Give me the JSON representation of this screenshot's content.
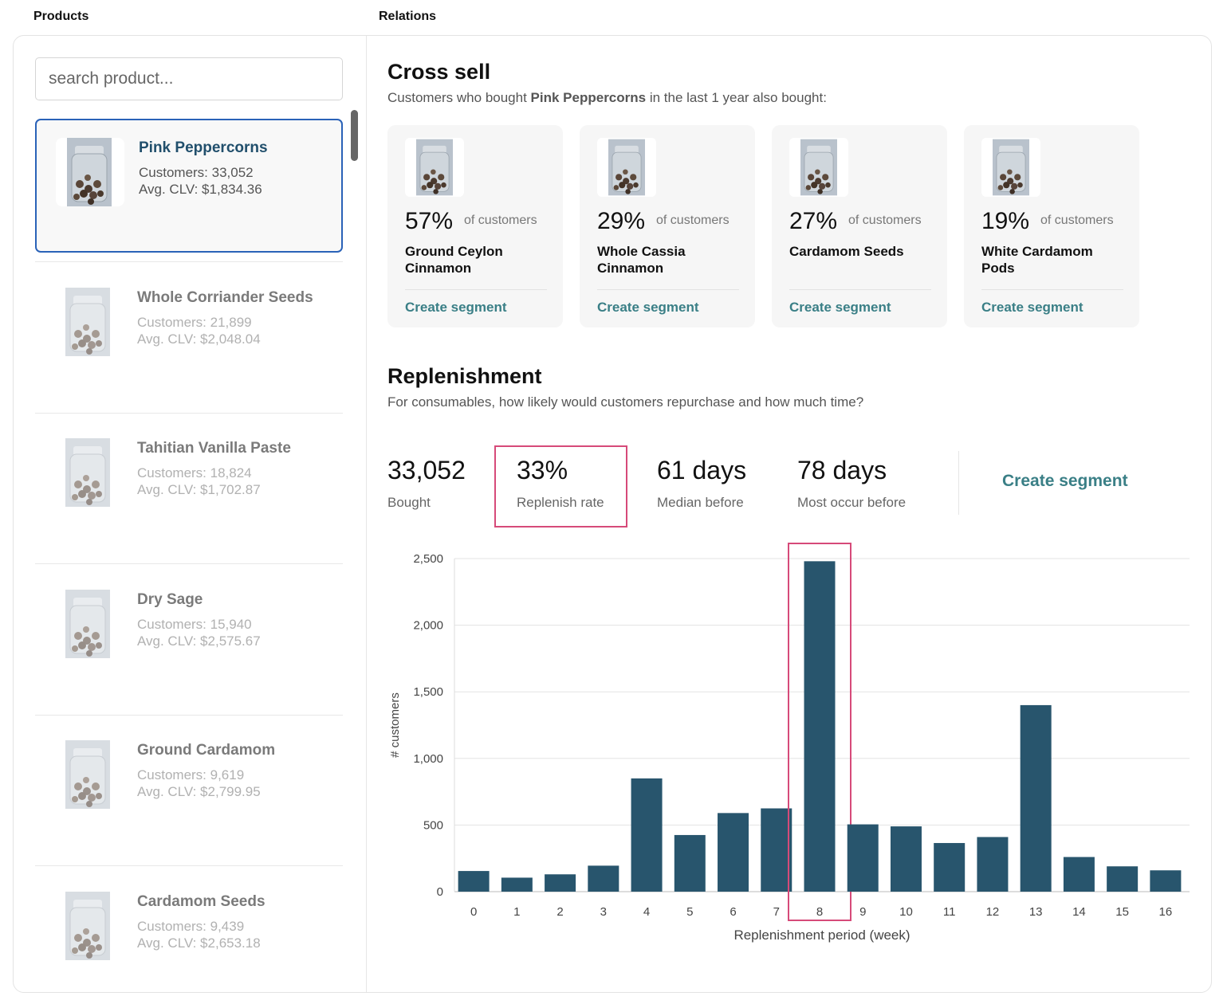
{
  "headers": {
    "products": "Products",
    "relations": "Relations"
  },
  "search": {
    "placeholder": "search product..."
  },
  "products": [
    {
      "name": "Pink Peppercorns",
      "customers": "Customers: 33,052",
      "clv": "Avg. CLV: $1,834.36",
      "selected": true
    },
    {
      "name": "Whole Corriander Seeds",
      "customers": "Customers: 21,899",
      "clv": "Avg. CLV: $2,048.04"
    },
    {
      "name": "Tahitian Vanilla Paste",
      "customers": "Customers: 18,824",
      "clv": "Avg. CLV: $1,702.87"
    },
    {
      "name": "Dry Sage",
      "customers": "Customers: 15,940",
      "clv": "Avg. CLV: $2,575.67"
    },
    {
      "name": "Ground Cardamom",
      "customers": "Customers: 9,619",
      "clv": "Avg. CLV: $2,799.95"
    },
    {
      "name": "Cardamom Seeds",
      "customers": "Customers: 9,439",
      "clv": "Avg. CLV: $2,653.18"
    }
  ],
  "cross_sell": {
    "title": "Cross sell",
    "subtitle_prefix": "Customers who bought ",
    "subtitle_product": "Pink Peppercorns",
    "subtitle_suffix": " in the last 1 year also bought:",
    "items": [
      {
        "pct": "57%",
        "of": "of customers",
        "name": "Ground Ceylon Cinnamon",
        "action": "Create segment"
      },
      {
        "pct": "29%",
        "of": "of customers",
        "name": "Whole Cassia Cinnamon",
        "action": "Create segment"
      },
      {
        "pct": "27%",
        "of": "of customers",
        "name": "Cardamom Seeds",
        "action": "Create segment"
      },
      {
        "pct": "19%",
        "of": "of customers",
        "name": "White Cardamom Pods",
        "action": "Create segment"
      }
    ]
  },
  "replenishment": {
    "title": "Replenishment",
    "subtitle": "For consumables, how likely would customers repurchase and how much time?",
    "stats": [
      {
        "value": "33,052",
        "label": "Bought"
      },
      {
        "value": "33%",
        "label": "Replenish rate"
      },
      {
        "value": "61 days",
        "label": "Median before"
      },
      {
        "value": "78 days",
        "label": "Most occur before"
      }
    ],
    "action": "Create segment"
  },
  "colors": {
    "bar": "#28556d",
    "highlight": "#d64a79",
    "link": "#3a7f86",
    "selected_border": "#2a62b8"
  },
  "chart_data": {
    "type": "bar",
    "xlabel": "Replenishment period (week)",
    "ylabel": "# customers",
    "ylim": [
      0,
      2500
    ],
    "yticks": [
      0,
      500,
      1000,
      1500,
      2000,
      2500
    ],
    "ytick_labels": [
      "0",
      "500",
      "1,000",
      "1,500",
      "2,000",
      "2,500"
    ],
    "grid": true,
    "categories": [
      "0",
      "1",
      "2",
      "3",
      "4",
      "5",
      "6",
      "7",
      "8",
      "9",
      "10",
      "11",
      "12",
      "13",
      "14",
      "15",
      "16"
    ],
    "values": [
      155,
      105,
      130,
      195,
      850,
      425,
      590,
      625,
      2480,
      505,
      490,
      365,
      410,
      1400,
      260,
      190,
      160
    ],
    "highlighted_category": "8"
  }
}
